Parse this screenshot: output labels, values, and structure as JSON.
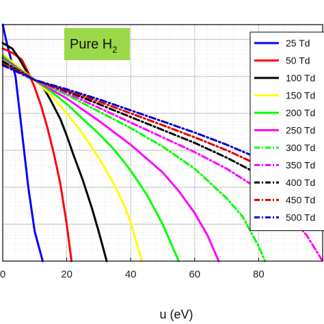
{
  "chart_data": {
    "type": "line",
    "xlabel": "u (eV)",
    "ylabel": "",
    "title": "",
    "xlim": [
      0,
      100
    ],
    "x_ticks": [
      0,
      20,
      40,
      60,
      80
    ],
    "x_tick_labels": [
      "0",
      "20",
      "40",
      "60",
      "80"
    ],
    "y_scale": "log",
    "ylim_log10": [
      -6,
      0.4
    ],
    "grid": true,
    "legend_position": "right",
    "annotation": {
      "text": "Pure H",
      "subscript": "2",
      "background": "#9bd84a"
    },
    "series": [
      {
        "name": "25 Td",
        "color": "#0000ff",
        "style": "solid",
        "x": [
          0,
          1,
          2,
          4,
          6,
          8,
          10,
          12.5
        ],
        "log_y": [
          0.4,
          0.0,
          -0.35,
          -1.0,
          -2.5,
          -4.0,
          -5.2,
          -6.0
        ]
      },
      {
        "name": "50 Td",
        "color": "#ff0000",
        "style": "solid",
        "x": [
          0,
          2,
          4,
          6,
          8,
          10,
          12,
          14,
          16,
          18,
          20,
          21.5
        ],
        "log_y": [
          -0.25,
          -0.32,
          -0.42,
          -0.55,
          -0.9,
          -1.3,
          -1.8,
          -2.4,
          -3.1,
          -3.9,
          -5.0,
          -6.0
        ]
      },
      {
        "name": "100 Td",
        "color": "#000000",
        "style": "solid",
        "x": [
          0,
          3,
          5,
          8,
          10,
          12,
          15,
          18,
          20,
          22,
          25,
          28,
          30,
          32.5
        ],
        "log_y": [
          -0.1,
          -0.25,
          -0.5,
          -0.95,
          -1.1,
          -1.2,
          -1.65,
          -2.15,
          -2.6,
          -3.1,
          -3.8,
          -4.6,
          -5.2,
          -6.0
        ]
      },
      {
        "name": "150 Td",
        "color": "#ffff00",
        "style": "solid",
        "x": [
          0,
          5,
          10,
          15,
          20,
          25,
          30,
          35,
          38,
          40,
          43.5
        ],
        "log_y": [
          -0.4,
          -0.75,
          -1.1,
          -1.5,
          -2.0,
          -2.55,
          -3.2,
          -3.95,
          -4.5,
          -4.95,
          -6.0
        ]
      },
      {
        "name": "200 Td",
        "color": "#00ff00",
        "style": "solid",
        "x": [
          0,
          5,
          10,
          15,
          20,
          25,
          30,
          35,
          40,
          45,
          50,
          55
        ],
        "log_y": [
          -0.45,
          -0.8,
          -1.1,
          -1.4,
          -1.75,
          -2.15,
          -2.55,
          -3.0,
          -3.55,
          -4.2,
          -5.0,
          -6.0
        ]
      },
      {
        "name": "250 Td",
        "color": "#ff00ff",
        "style": "solid",
        "x": [
          0,
          5,
          10,
          20,
          30,
          40,
          50,
          55,
          60,
          64,
          67.5
        ],
        "log_y": [
          -0.5,
          -0.8,
          -1.1,
          -1.6,
          -2.2,
          -2.85,
          -3.6,
          -4.1,
          -4.7,
          -5.3,
          -6.0
        ]
      },
      {
        "name": "300 Td",
        "color": "#00ff00",
        "style": "dashdot",
        "x": [
          0,
          10,
          20,
          30,
          40,
          50,
          60,
          70,
          75,
          80,
          82
        ],
        "log_y": [
          -0.55,
          -1.1,
          -1.5,
          -1.95,
          -2.4,
          -2.9,
          -3.5,
          -4.3,
          -4.8,
          -5.6,
          -6.0
        ]
      },
      {
        "name": "350 Td",
        "color": "#ff00ff",
        "style": "dashdot",
        "x": [
          0,
          10,
          20,
          30,
          40,
          50,
          60,
          70,
          80,
          90,
          95,
          100
        ],
        "log_y": [
          -0.6,
          -1.1,
          -1.45,
          -1.85,
          -2.25,
          -2.65,
          -3.05,
          -3.5,
          -4.05,
          -4.8,
          -5.3,
          -6.0
        ]
      },
      {
        "name": "400 Td",
        "color": "#000000",
        "style": "dashdot",
        "x": [
          0,
          10,
          20,
          30,
          40,
          50,
          60,
          70,
          80,
          90,
          100
        ],
        "log_y": [
          -0.6,
          -1.1,
          -1.4,
          -1.75,
          -2.1,
          -2.45,
          -2.8,
          -3.2,
          -3.65,
          -4.2,
          -5.0
        ]
      },
      {
        "name": "450 Td",
        "color": "#dd0000",
        "style": "dashdot",
        "x": [
          0,
          10,
          20,
          30,
          40,
          50,
          60,
          70,
          80,
          90,
          100
        ],
        "log_y": [
          -0.65,
          -1.1,
          -1.38,
          -1.68,
          -2.0,
          -2.32,
          -2.65,
          -3.0,
          -3.4,
          -3.9,
          -4.7
        ]
      },
      {
        "name": "500 Td",
        "color": "#0000cc",
        "style": "dashdot",
        "x": [
          0,
          10,
          20,
          30,
          40,
          50,
          60,
          70,
          80,
          90,
          100
        ],
        "log_y": [
          -0.7,
          -1.1,
          -1.35,
          -1.62,
          -1.92,
          -2.22,
          -2.52,
          -2.85,
          -3.22,
          -3.65,
          -4.3
        ]
      }
    ]
  }
}
